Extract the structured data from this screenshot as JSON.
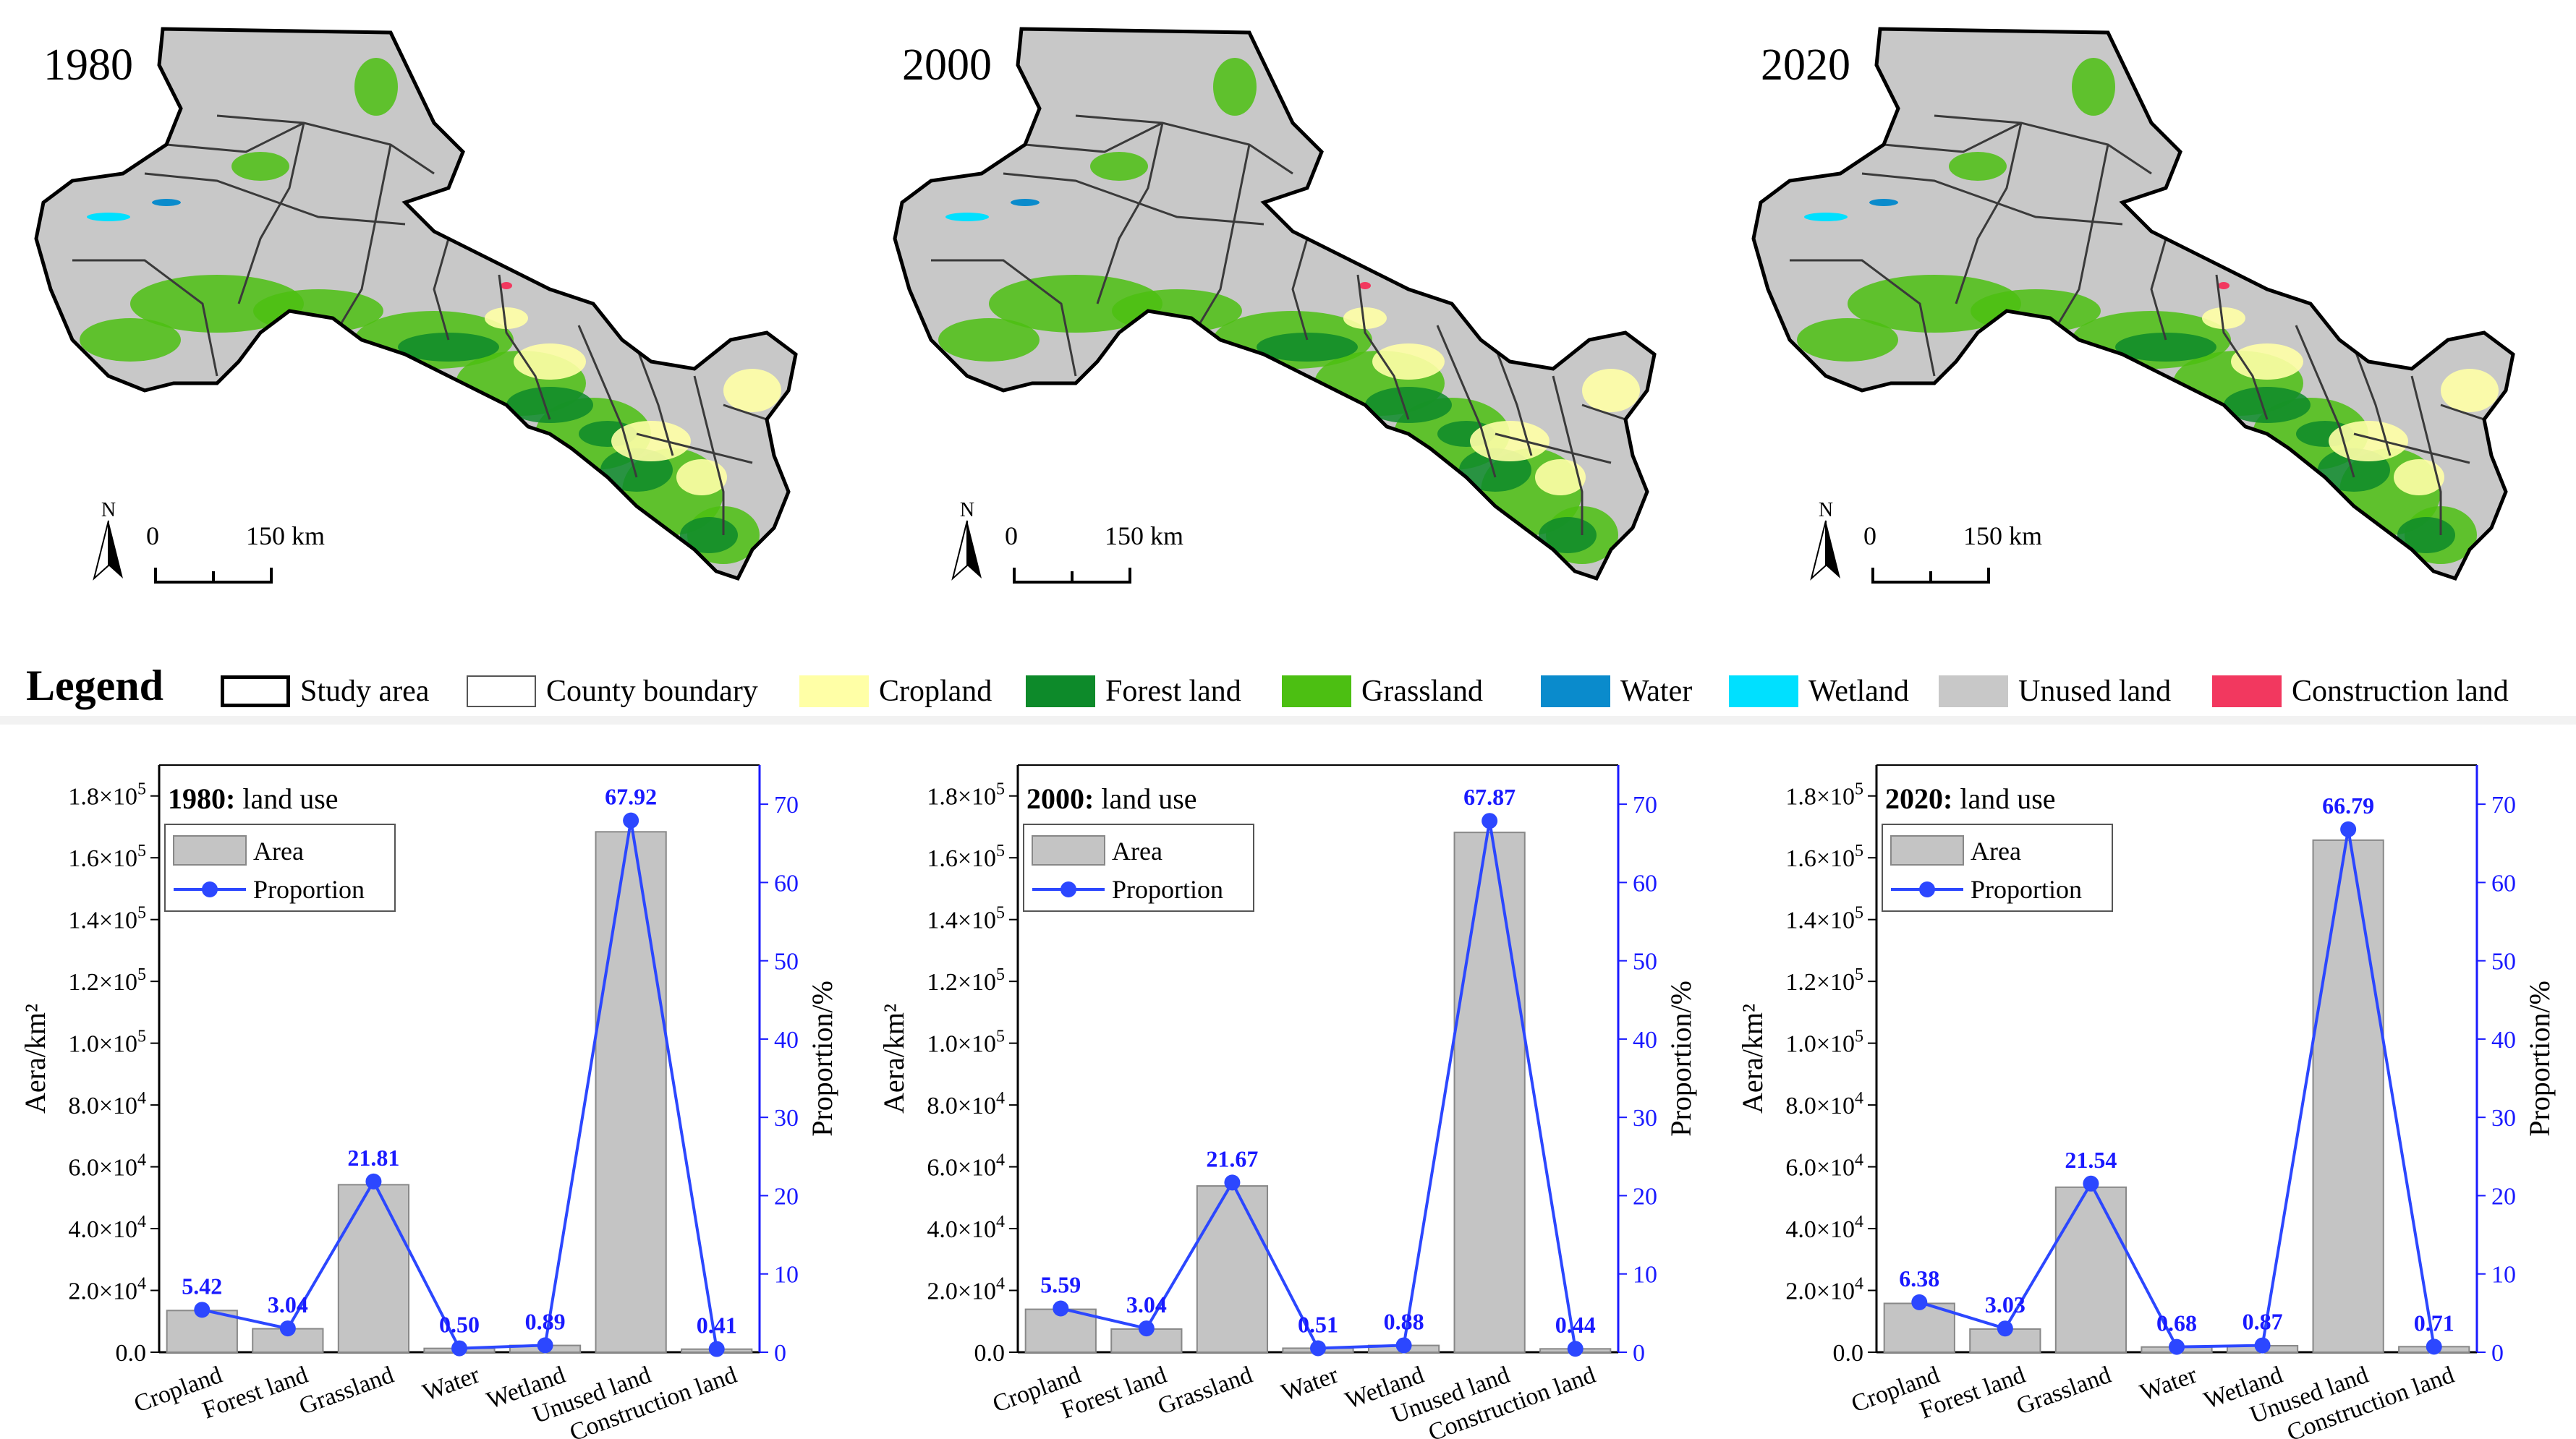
{
  "maps": [
    {
      "year": "1980",
      "north_label": "N",
      "scale_zero": "0",
      "scale_max": "150 km"
    },
    {
      "year": "2000",
      "north_label": "N",
      "scale_zero": "0",
      "scale_max": "150 km"
    },
    {
      "year": "2020",
      "north_label": "N",
      "scale_zero": "0",
      "scale_max": "150 km"
    }
  ],
  "legend": {
    "title": "Legend",
    "items": [
      {
        "label": "Study area",
        "color": "#ffffff",
        "border": "#000000",
        "kind": "thick-outline"
      },
      {
        "label": "County boundary",
        "color": "#ffffff",
        "border": "#555555",
        "kind": "thin-outline"
      },
      {
        "label": "Cropland",
        "color": "#ffffa6",
        "border": "#ffffa6",
        "kind": "fill"
      },
      {
        "label": "Forest land",
        "color": "#0d8a2a",
        "border": "#0d8a2a",
        "kind": "fill"
      },
      {
        "label": "Grassland",
        "color": "#4cbf12",
        "border": "#4cbf12",
        "kind": "fill"
      },
      {
        "label": "Water",
        "color": "#0a8bcc",
        "border": "#0a8bcc",
        "kind": "fill"
      },
      {
        "label": "Wetland",
        "color": "#00e0ff",
        "border": "#00e0ff",
        "kind": "fill"
      },
      {
        "label": "Unused land",
        "color": "#c8c8c8",
        "border": "#c8c8c8",
        "kind": "fill"
      },
      {
        "label": "Construction land",
        "color": "#f2385f",
        "border": "#f2385f",
        "kind": "fill"
      }
    ]
  },
  "colors": {
    "bar": "#c4c4c4",
    "bar_stroke": "#888888",
    "line": "#2c47ff",
    "label": "#1a1aff",
    "axis_right": "#1a1aff"
  },
  "chart_data": [
    {
      "type": "bar",
      "title_year": "1980:",
      "title_rest": " land use",
      "categories": [
        "Cropland",
        "Forest land",
        "Grassland",
        "Water",
        "Wetland",
        "Unused land",
        "Construction land"
      ],
      "series": [
        {
          "name": "Area",
          "axis": "left",
          "values": [
            13500,
            7600,
            54200,
            1250,
            2200,
            168400,
            1000
          ]
        },
        {
          "name": "Proportion",
          "axis": "right",
          "values": [
            5.42,
            3.04,
            21.81,
            0.5,
            0.89,
            67.92,
            0.41
          ]
        }
      ],
      "data_labels": [
        "5.42",
        "3.04",
        "21.81",
        "0.50",
        "0.89",
        "67.92",
        "0.41"
      ],
      "ylabel": "Aera/km²",
      "y2label": "Proportion/%",
      "ylim": [
        0,
        190000
      ],
      "y2lim": [
        0,
        75
      ],
      "y_ticks": [
        {
          "mant": "0.0",
          "exp": ""
        },
        {
          "mant": "2.0×10",
          "exp": "4"
        },
        {
          "mant": "4.0×10",
          "exp": "4"
        },
        {
          "mant": "6.0×10",
          "exp": "4"
        },
        {
          "mant": "8.0×10",
          "exp": "4"
        },
        {
          "mant": "1.0×10",
          "exp": "5"
        },
        {
          "mant": "1.2×10",
          "exp": "5"
        },
        {
          "mant": "1.4×10",
          "exp": "5"
        },
        {
          "mant": "1.6×10",
          "exp": "5"
        },
        {
          "mant": "1.8×10",
          "exp": "5"
        }
      ],
      "y_tick_values": [
        0,
        20000,
        40000,
        60000,
        80000,
        100000,
        120000,
        140000,
        160000,
        180000
      ],
      "y2_ticks": [
        "0",
        "10",
        "20",
        "30",
        "40",
        "50",
        "60",
        "70"
      ],
      "y2_tick_values": [
        0,
        10,
        20,
        30,
        40,
        50,
        60,
        70
      ],
      "legend": [
        "Area",
        "Proportion"
      ]
    },
    {
      "type": "bar",
      "title_year": "2000:",
      "title_rest": " land use",
      "categories": [
        "Cropland",
        "Forest land",
        "Grassland",
        "Water",
        "Wetland",
        "Unused land",
        "Construction land"
      ],
      "series": [
        {
          "name": "Area",
          "axis": "left",
          "values": [
            13900,
            7500,
            53800,
            1300,
            2200,
            168200,
            1100
          ]
        },
        {
          "name": "Proportion",
          "axis": "right",
          "values": [
            5.59,
            3.04,
            21.67,
            0.51,
            0.88,
            67.87,
            0.44
          ]
        }
      ],
      "data_labels": [
        "5.59",
        "3.04",
        "21.67",
        "0.51",
        "0.88",
        "67.87",
        "0.44"
      ],
      "ylabel": "Aera/km²",
      "y2label": "Proportion/%",
      "ylim": [
        0,
        190000
      ],
      "y2lim": [
        0,
        75
      ],
      "y_ticks": [
        {
          "mant": "0.0",
          "exp": ""
        },
        {
          "mant": "2.0×10",
          "exp": "4"
        },
        {
          "mant": "4.0×10",
          "exp": "4"
        },
        {
          "mant": "6.0×10",
          "exp": "4"
        },
        {
          "mant": "8.0×10",
          "exp": "4"
        },
        {
          "mant": "1.0×10",
          "exp": "5"
        },
        {
          "mant": "1.2×10",
          "exp": "5"
        },
        {
          "mant": "1.4×10",
          "exp": "5"
        },
        {
          "mant": "1.6×10",
          "exp": "5"
        },
        {
          "mant": "1.8×10",
          "exp": "5"
        }
      ],
      "y_tick_values": [
        0,
        20000,
        40000,
        60000,
        80000,
        100000,
        120000,
        140000,
        160000,
        180000
      ],
      "y2_ticks": [
        "0",
        "10",
        "20",
        "30",
        "40",
        "50",
        "60",
        "70"
      ],
      "y2_tick_values": [
        0,
        10,
        20,
        30,
        40,
        50,
        60,
        70
      ],
      "legend": [
        "Area",
        "Proportion"
      ]
    },
    {
      "type": "bar",
      "title_year": "2020:",
      "title_rest": " land use",
      "categories": [
        "Cropland",
        "Forest land",
        "Grassland",
        "Water",
        "Wetland",
        "Unused land",
        "Construction land"
      ],
      "series": [
        {
          "name": "Area",
          "axis": "left",
          "values": [
            15800,
            7500,
            53400,
            1700,
            2100,
            165700,
            1800
          ]
        },
        {
          "name": "Proportion",
          "axis": "right",
          "values": [
            6.38,
            3.03,
            21.54,
            0.68,
            0.87,
            66.79,
            0.71
          ]
        }
      ],
      "data_labels": [
        "6.38",
        "3.03",
        "21.54",
        "0.68",
        "0.87",
        "66.79",
        "0.71"
      ],
      "ylabel": "Aera/km²",
      "y2label": "Proportion/%",
      "ylim": [
        0,
        190000
      ],
      "y2lim": [
        0,
        75
      ],
      "y_ticks": [
        {
          "mant": "0.0",
          "exp": ""
        },
        {
          "mant": "2.0×10",
          "exp": "4"
        },
        {
          "mant": "4.0×10",
          "exp": "4"
        },
        {
          "mant": "6.0×10",
          "exp": "4"
        },
        {
          "mant": "8.0×10",
          "exp": "4"
        },
        {
          "mant": "1.0×10",
          "exp": "5"
        },
        {
          "mant": "1.2×10",
          "exp": "5"
        },
        {
          "mant": "1.4×10",
          "exp": "5"
        },
        {
          "mant": "1.6×10",
          "exp": "5"
        },
        {
          "mant": "1.8×10",
          "exp": "5"
        }
      ],
      "y_tick_values": [
        0,
        20000,
        40000,
        60000,
        80000,
        100000,
        120000,
        140000,
        160000,
        180000
      ],
      "y2_ticks": [
        "0",
        "10",
        "20",
        "30",
        "40",
        "50",
        "60",
        "70"
      ],
      "y2_tick_values": [
        0,
        10,
        20,
        30,
        40,
        50,
        60,
        70
      ],
      "legend": [
        "Area",
        "Proportion"
      ]
    }
  ]
}
